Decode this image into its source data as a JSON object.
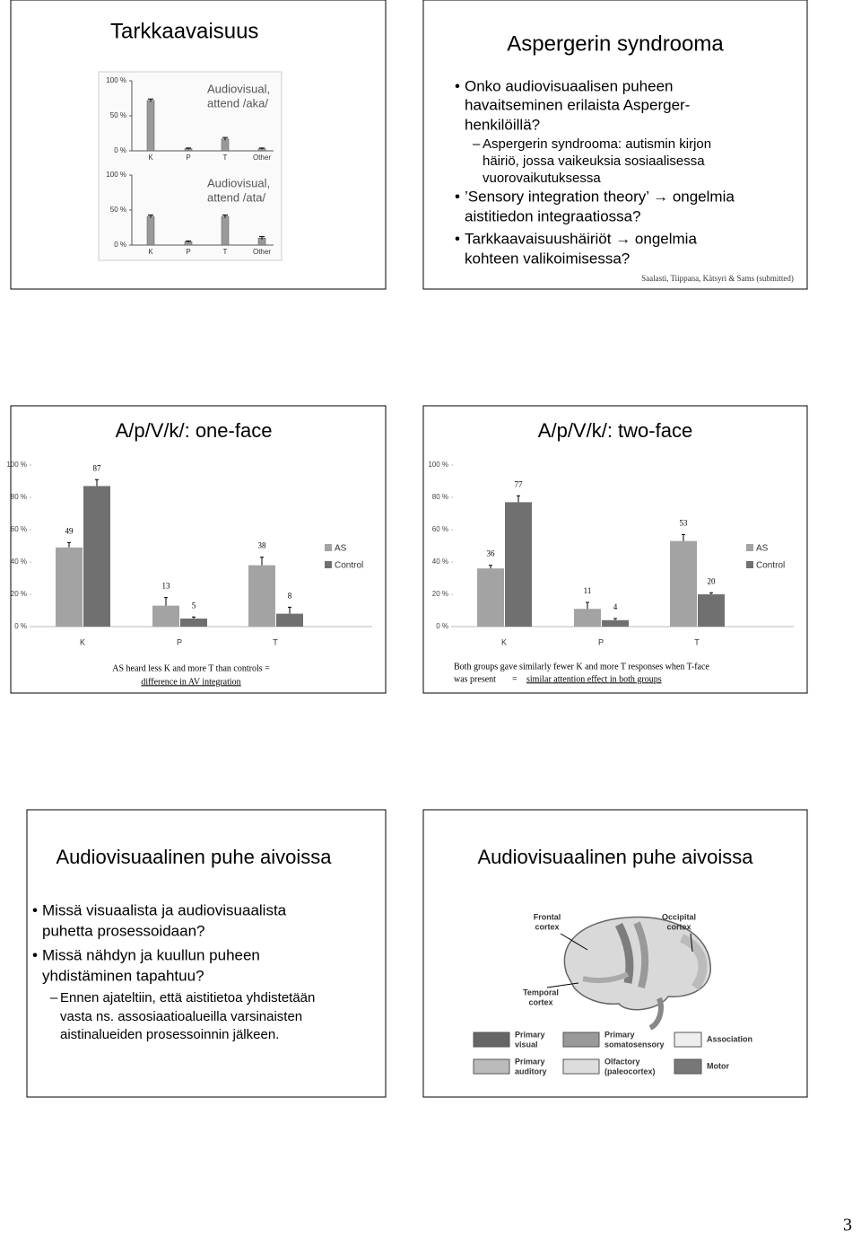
{
  "page_number": "3",
  "slides": [
    {
      "title": "Tarkkaavaisuus",
      "charts": [
        {
          "label": [
            "Audiovisual,",
            "attend /aka/"
          ],
          "categories": [
            "K",
            "P",
            "T",
            "Other"
          ],
          "values": [
            72,
            3,
            17,
            3
          ],
          "errors": [
            2,
            1,
            2,
            1
          ],
          "ylim": [
            0,
            100
          ],
          "yticks": [
            {
              "value": 0,
              "label": "0 %"
            },
            {
              "value": 50,
              "label": "50 %"
            },
            {
              "value": 100,
              "label": "100 %"
            }
          ]
        },
        {
          "label": [
            "Audiovisual,",
            "attend /ata/"
          ],
          "categories": [
            "K",
            "P",
            "T",
            "Other"
          ],
          "values": [
            41,
            5,
            41,
            10
          ],
          "errors": [
            2,
            1,
            2,
            2
          ],
          "ylim": [
            0,
            100
          ],
          "yticks": [
            {
              "value": 0,
              "label": "0 %"
            },
            {
              "value": 50,
              "label": "50 %"
            },
            {
              "value": 100,
              "label": "100 %"
            }
          ]
        }
      ]
    },
    {
      "title": "Aspergerin syndrooma",
      "bullets": [
        {
          "level": 1,
          "lines": [
            "Onko audiovisuaalisen puheen",
            "havaitseminen erilaista Asperger-",
            "henkilöillä?"
          ]
        },
        {
          "level": 2,
          "lines": [
            "Aspergerin syndrooma: autismin kirjon",
            "häiriö, jossa vaikeuksia sosiaalisessa",
            "vuorovaikutuksessa"
          ]
        },
        {
          "level": 1,
          "lines": [
            "’Sensory integration theory’ → ongelmia",
            "aistitiedon integraatiossa?"
          ]
        },
        {
          "level": 1,
          "lines": [
            "Tarkkaavaisuushäiriöt → ongelmia",
            "kohteen valikoimisessa?"
          ]
        }
      ],
      "citation": "Saalasti, Tiippana, Kätsyri & Sams (submitted)"
    },
    {
      "title": "A/p/V/k/: one-face",
      "chart": {
        "categories": [
          "K",
          "P",
          "T"
        ],
        "series": [
          {
            "name": "AS",
            "color": "#a3a3a3",
            "values": [
              49,
              13,
              38
            ],
            "errors": [
              3,
              5,
              5
            ]
          },
          {
            "name": "Control",
            "color": "#707070",
            "values": [
              87,
              5,
              8
            ],
            "errors": [
              4,
              1,
              4
            ]
          }
        ],
        "ylim": [
          0,
          100
        ],
        "yticks": [
          {
            "value": 0,
            "label": "0 %"
          },
          {
            "value": 20,
            "label": "20 %"
          },
          {
            "value": 40,
            "label": "40 %"
          },
          {
            "value": 60,
            "label": "60 %"
          },
          {
            "value": 80,
            "label": "80 %"
          },
          {
            "value": 100,
            "label": "100 %"
          }
        ]
      },
      "caption": [
        "AS heard less K and more T than controls =",
        "difference in AV integration"
      ]
    },
    {
      "title": "A/p/V/k/: two-face",
      "chart": {
        "categories": [
          "K",
          "P",
          "T"
        ],
        "series": [
          {
            "name": "AS",
            "color": "#a3a3a3",
            "values": [
              36,
              11,
              53
            ],
            "errors": [
              2,
              4,
              4
            ]
          },
          {
            "name": "Control",
            "color": "#707070",
            "values": [
              77,
              4,
              20
            ],
            "errors": [
              4,
              1,
              1
            ]
          }
        ],
        "ylim": [
          0,
          100
        ],
        "yticks": [
          {
            "value": 0,
            "label": "0 %"
          },
          {
            "value": 20,
            "label": "20 %"
          },
          {
            "value": 40,
            "label": "40 %"
          },
          {
            "value": 60,
            "label": "60 %"
          },
          {
            "value": 80,
            "label": "80 %"
          },
          {
            "value": 100,
            "label": "100 %"
          }
        ]
      },
      "caption": [
        "Both groups gave similarly fewer K and more T responses when T-face",
        "was present",
        "=",
        "similar attention effect in both groups"
      ]
    },
    {
      "title": "Audiovisuaalinen puhe aivoissa",
      "bullets": [
        {
          "level": 1,
          "lines": [
            "Missä visuaalista ja audiovisuaalista",
            "puhetta prosessoidaan?"
          ]
        },
        {
          "level": 1,
          "lines": [
            "Missä nähdyn ja kuullun puheen",
            "yhdistäminen tapahtuu?"
          ]
        },
        {
          "level": 2,
          "lines": [
            "Ennen ajateltiin, että aistitietoa yhdistetään",
            "vasta ns. assosiaatioalueilla varsinaisten",
            "aistinalueiden prosessoinnin jälkeen."
          ]
        }
      ]
    },
    {
      "title": "Audiovisuaalinen puhe aivoissa",
      "figure_labels": [
        [
          "Frontal",
          "cortex"
        ],
        [
          "Occipital",
          "cortex"
        ],
        [
          "Temporal",
          "cortex"
        ]
      ],
      "legend": [
        [
          "Primary",
          "visual"
        ],
        [
          "Primary",
          "somatosensory"
        ],
        [
          "Association"
        ],
        [
          "Primary",
          "auditory"
        ],
        [
          "Olfactory",
          "(paleocortex)"
        ],
        [
          "Motor"
        ]
      ]
    }
  ]
}
